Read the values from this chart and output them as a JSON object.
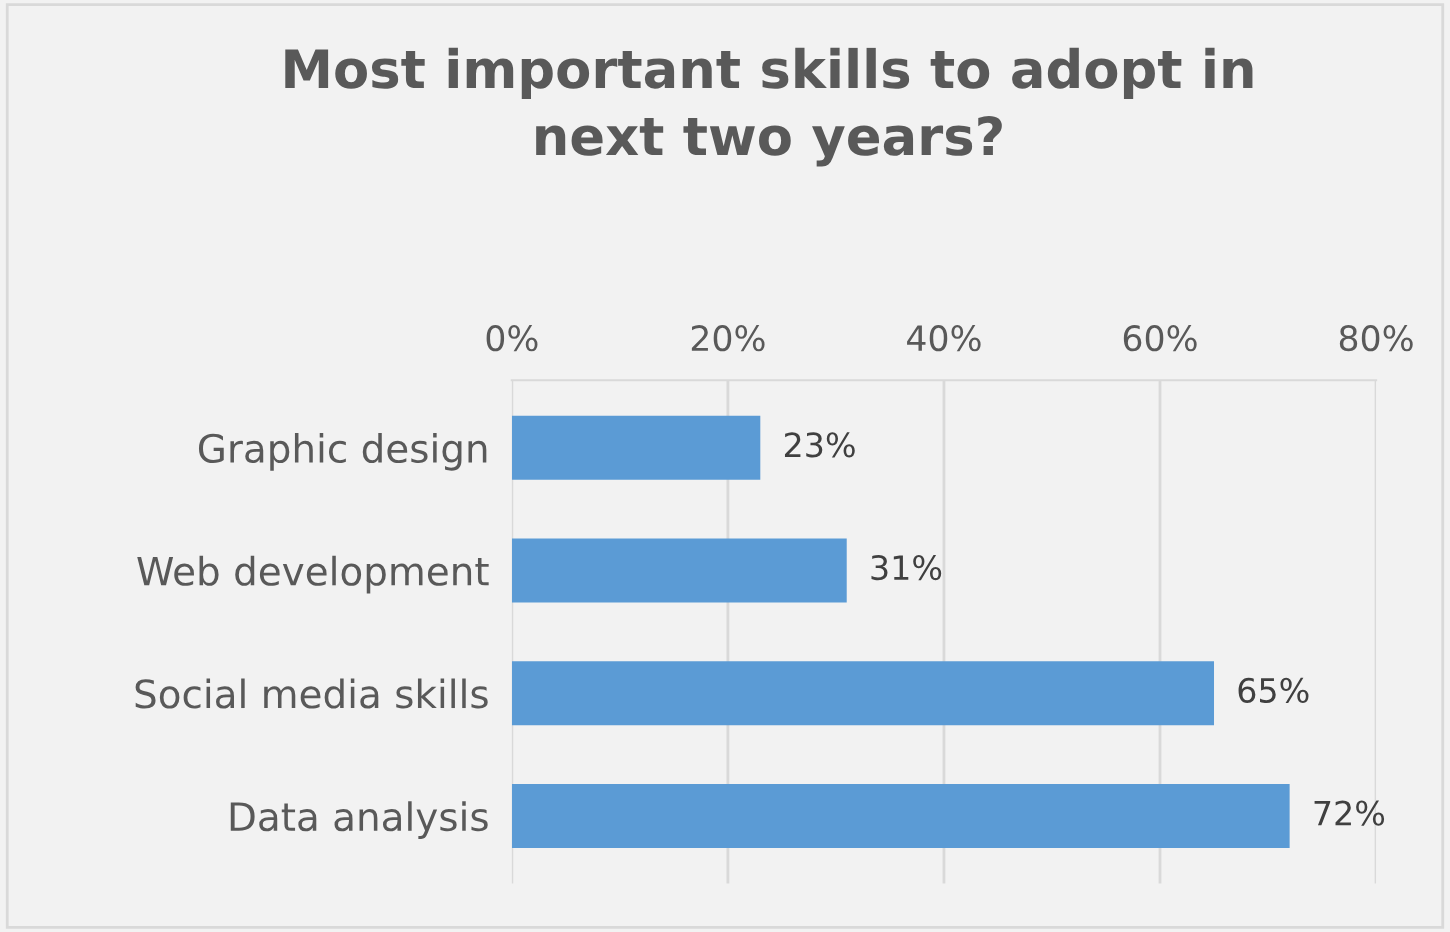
{
  "chart_data": {
    "type": "bar",
    "orientation": "horizontal",
    "title": "Most important skills to adopt in\nnext two years?",
    "categories": [
      "Graphic design",
      "Web development",
      "Social media skills",
      "Data analysis"
    ],
    "values": [
      23,
      31,
      65,
      72
    ],
    "value_labels": [
      "23%",
      "31%",
      "65%",
      "72%"
    ],
    "color": "#5b9bd5",
    "xlim": [
      0,
      80
    ],
    "xticks": [
      {
        "value": 0,
        "label": "0%"
      },
      {
        "value": 20,
        "label": "20%"
      },
      {
        "value": 40,
        "label": "40%"
      },
      {
        "value": 60,
        "label": "60%"
      },
      {
        "value": 80,
        "label": "80%"
      }
    ],
    "grid": "x"
  }
}
